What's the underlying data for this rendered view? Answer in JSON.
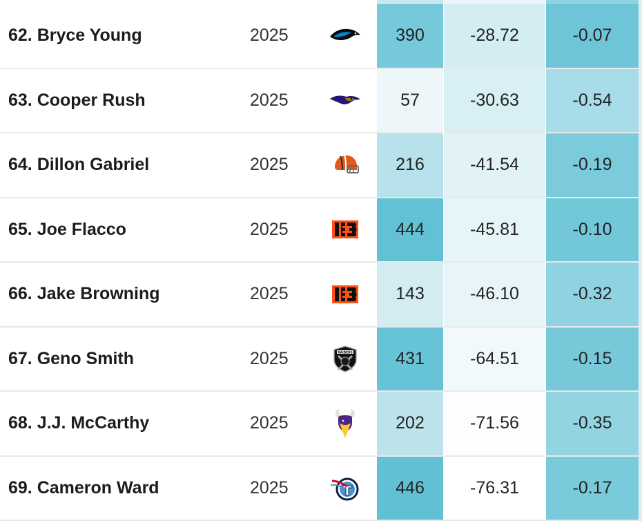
{
  "rows": [
    {
      "name": "62. Bryce Young",
      "year": "2025",
      "team_icon": "panthers-logo-icon",
      "c1": "390",
      "c2": "-28.72",
      "c3": "-0.07",
      "bg1": "#76c9db",
      "bg2": "#d3edf3",
      "bg3": "#6fc5d8"
    },
    {
      "name": "63. Cooper Rush",
      "year": "2025",
      "team_icon": "ravens-logo-icon",
      "c1": "57",
      "c2": "-30.63",
      "c3": "-0.54",
      "bg1": "#edf7f9",
      "bg2": "#d8eff4",
      "bg3": "#a8dce8"
    },
    {
      "name": "64. Dillon Gabriel",
      "year": "2025",
      "team_icon": "browns-logo-icon",
      "c1": "216",
      "c2": "-41.54",
      "c3": "-0.19",
      "bg1": "#b8e2eb",
      "bg2": "#e2f3f7",
      "bg3": "#7ccbdc"
    },
    {
      "name": "65. Joe Flacco",
      "year": "2025",
      "team_icon": "bengals-logo-icon",
      "c1": "444",
      "c2": "-45.81",
      "c3": "-0.10",
      "bg1": "#63c1d5",
      "bg2": "#e6f5f8",
      "bg3": "#72c7d9"
    },
    {
      "name": "66. Jake Browning",
      "year": "2025",
      "team_icon": "bengals-logo-icon",
      "c1": "143",
      "c2": "-46.10",
      "c3": "-0.32",
      "bg1": "#d2ecf2",
      "bg2": "#e7f5f8",
      "bg3": "#8fd2e1"
    },
    {
      "name": "67. Geno Smith",
      "year": "2025",
      "team_icon": "raiders-logo-icon",
      "c1": "431",
      "c2": "-64.51",
      "c3": "-0.15",
      "bg1": "#67c3d6",
      "bg2": "#f1f9fb",
      "bg3": "#77c9da"
    },
    {
      "name": "68. J.J. McCarthy",
      "year": "2025",
      "team_icon": "vikings-logo-icon",
      "c1": "202",
      "c2": "-71.56",
      "c3": "-0.35",
      "bg1": "#bce3ec",
      "bg2": "#fbfdfe",
      "bg3": "#93d4e2"
    },
    {
      "name": "69. Cameron Ward",
      "year": "2025",
      "team_icon": "titans-logo-icon",
      "c1": "446",
      "c2": "-76.31",
      "c3": "-0.17",
      "bg1": "#62c0d5",
      "bg2": "#ffffff",
      "bg3": "#79cadb"
    }
  ],
  "colors": {
    "row_border": "#e9e9e9",
    "rail": "#dceef3"
  }
}
